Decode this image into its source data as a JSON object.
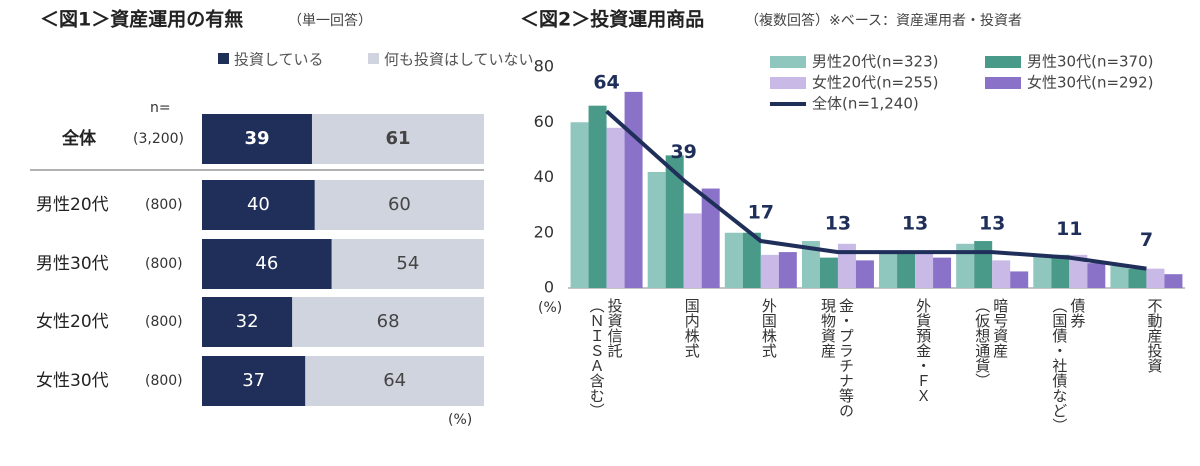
{
  "chart_data": [
    {
      "type": "stacked_hbar",
      "title": "＜図1＞資産運用の有無",
      "subtitle": "（単一回答）",
      "categories": [
        "全体",
        "男性20代",
        "男性30代",
        "女性20代",
        "女性30代"
      ],
      "n_header": "n=",
      "n_labels": [
        "(3,200)",
        "(800)",
        "(800)",
        "(800)",
        "(800)"
      ],
      "series": [
        {
          "name": "投資している",
          "color": "#1f2f5a",
          "values": [
            39,
            40,
            46,
            32,
            37
          ]
        },
        {
          "name": "何も投資はしていない",
          "color": "#d0d4de",
          "values": [
            61,
            60,
            54,
            68,
            64
          ]
        }
      ],
      "unit_label": "(%)"
    },
    {
      "type": "bar_line",
      "title": "＜図2＞投資運用商品",
      "subtitle": "（複数回答）※ベース：資産運用者・投資者",
      "categories": [
        [
          "投資信託",
          "（ＮＩＳＡ含む）"
        ],
        [
          "国内株式"
        ],
        [
          "外国株式"
        ],
        [
          "金・プラチナ等の",
          "現物資産"
        ],
        [
          "外貨預金・ＦＸ"
        ],
        [
          "暗号資産",
          "（仮想通貨）"
        ],
        [
          "債券",
          "（国債・社債など）"
        ],
        [
          "不動産投資"
        ]
      ],
      "ylim": [
        0,
        80
      ],
      "yticks": [
        0,
        20,
        40,
        60,
        80
      ],
      "ylabel": "(%)",
      "series": [
        {
          "name": "男性20代(n=323)",
          "color": "#8fc6bd",
          "values": [
            60,
            42,
            20,
            17,
            13,
            16,
            12,
            8
          ]
        },
        {
          "name": "男性30代(n=370)",
          "color": "#4a9a8a",
          "values": [
            66,
            48,
            20,
            11,
            13,
            17,
            12,
            7
          ]
        },
        {
          "name": "女性20代(n=255)",
          "color": "#c8b9e6",
          "values": [
            58,
            27,
            12,
            16,
            13,
            10,
            12,
            7
          ]
        },
        {
          "name": "女性30代(n=292)",
          "color": "#8a72c8",
          "values": [
            71,
            36,
            13,
            10,
            11,
            6,
            9,
            5
          ]
        },
        {
          "name": "全体(n=1,240)",
          "color": "#1f2f5a",
          "type": "line",
          "values": [
            64,
            39,
            17,
            13,
            13,
            13,
            11,
            7
          ]
        }
      ]
    }
  ]
}
